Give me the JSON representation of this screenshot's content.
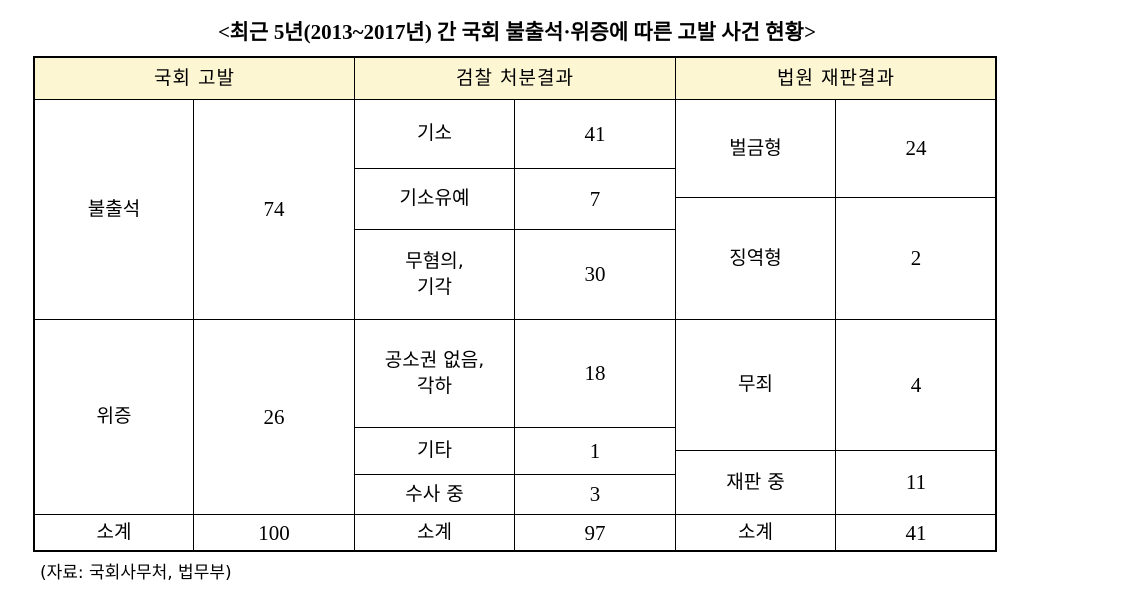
{
  "title": "<최근 5년(2013~2017년) 간 국회 불출석·위증에 따른 고발 사건 현황>",
  "table": {
    "headers": [
      "국회 고발",
      "검찰 처분결과",
      "법원 재판결과"
    ],
    "complaints": [
      {
        "label": "불출석",
        "count": 74
      },
      {
        "label": "위증",
        "count": 26
      }
    ],
    "prosecution": [
      {
        "label": "기소",
        "count": 41
      },
      {
        "label": "기소유예",
        "count": 7
      },
      {
        "label": "무혐의,\n기각",
        "count": 30
      },
      {
        "label": "공소권 없음,\n각하",
        "count": 18
      },
      {
        "label": "기타",
        "count": 1
      },
      {
        "label": "수사 중",
        "count": 3
      }
    ],
    "court": [
      {
        "label": "벌금형",
        "count": 24
      },
      {
        "label": "징역형",
        "count": 2
      },
      {
        "label": "무죄",
        "count": 4
      },
      {
        "label": "재판 중",
        "count": 11
      }
    ],
    "totals": [
      {
        "label": "소계",
        "count": 100
      },
      {
        "label": "소계",
        "count": 97
      },
      {
        "label": "소계",
        "count": 41
      }
    ]
  },
  "source": "(자료: 국회사무처, 법무부)"
}
